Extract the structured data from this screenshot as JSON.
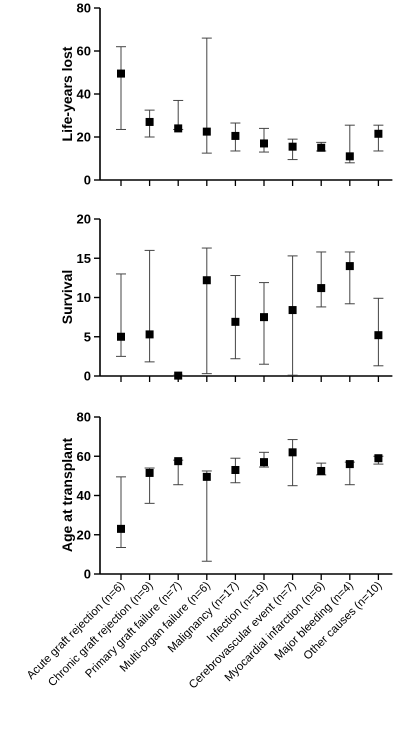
{
  "chart_data": [
    {
      "type": "scatter",
      "ylabel": "Life-years lost",
      "ylim": [
        0,
        80
      ],
      "yticks": [
        0,
        20,
        40,
        60,
        80
      ],
      "series": [
        {
          "values": [
            49.5,
            27,
            24,
            22.5,
            20.5,
            17,
            15.5,
            15,
            11,
            21.5
          ],
          "low": [
            23.5,
            20,
            23.5,
            12.5,
            13.5,
            13,
            9.5,
            13.5,
            8,
            13.5
          ],
          "high": [
            62,
            32.5,
            37,
            66,
            26.5,
            24,
            19,
            17.5,
            25.5,
            25.5
          ]
        }
      ]
    },
    {
      "type": "scatter",
      "ylabel": "Survival",
      "ylim": [
        0,
        20
      ],
      "yticks": [
        0,
        5,
        10,
        15,
        20
      ],
      "series": [
        {
          "values": [
            5.0,
            5.3,
            0.05,
            12.2,
            6.9,
            7.5,
            8.4,
            11.2,
            14.0,
            5.2
          ],
          "low": [
            2.5,
            1.8,
            0,
            0.3,
            2.2,
            1.5,
            0.1,
            8.8,
            9.2,
            1.3
          ],
          "high": [
            13.0,
            16.0,
            0.1,
            16.3,
            12.8,
            11.9,
            15.3,
            15.8,
            15.8,
            9.9
          ]
        }
      ]
    },
    {
      "type": "scatter",
      "ylabel": "Age at transplant",
      "ylim": [
        0,
        80
      ],
      "yticks": [
        0,
        20,
        40,
        60,
        80
      ],
      "series": [
        {
          "values": [
            23,
            51.5,
            57.5,
            49.5,
            53,
            57,
            62,
            52.5,
            56,
            59
          ],
          "low": [
            13.5,
            36,
            45.5,
            6.5,
            46.5,
            54.5,
            45,
            50.5,
            45.5,
            56
          ],
          "high": [
            49.5,
            54,
            58,
            52.5,
            59,
            62,
            68.5,
            56.5,
            57,
            60
          ]
        }
      ]
    }
  ],
  "categories": [
    "Acute graft rejection (n=6)",
    "Chronic graft rejection (n=9)",
    "Primary graft failure (n=7)",
    "Multi-organ failure (n=6)",
    "Malignancy (n=17)",
    "Infection (n=19)",
    "Cerebrovascular event (n=7)",
    "Myocardial infarction (n=6)",
    "Major bleeding (n=4)",
    "Other causes (n=10)"
  ]
}
